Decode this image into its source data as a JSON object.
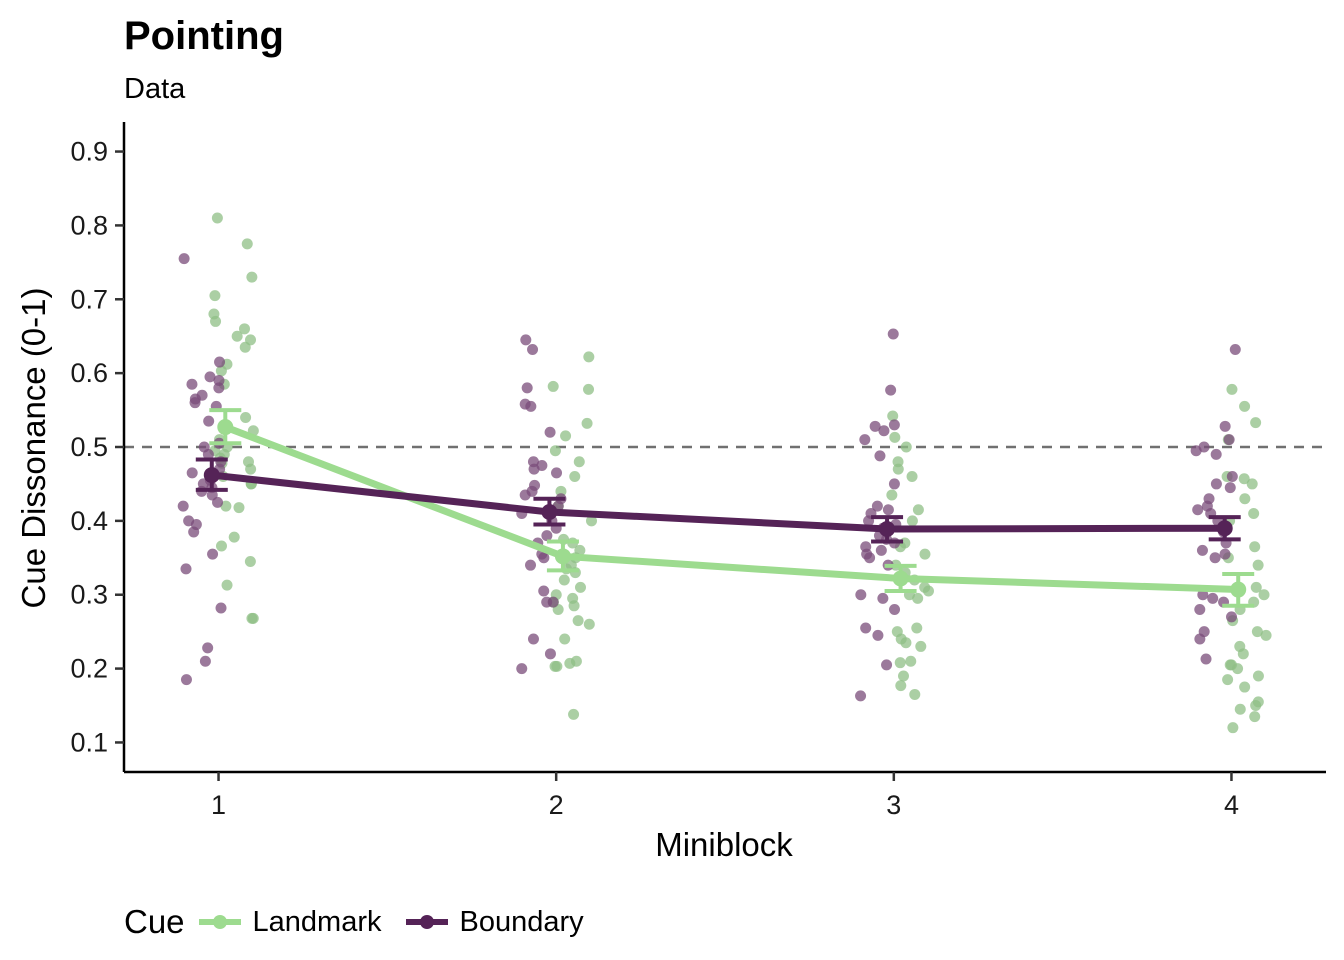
{
  "chart_data": {
    "type": "scatter",
    "title": "Pointing",
    "subtitle": "Data",
    "xlabel": "Miniblock",
    "ylabel": "Cue Dissonance (0-1)",
    "x": [
      1,
      2,
      3,
      4
    ],
    "x_ticks": [
      "1",
      "2",
      "3",
      "4"
    ],
    "xlim": [
      0.72,
      4.28
    ],
    "ylim": [
      0.06,
      0.94
    ],
    "y_ticks": [
      0.1,
      0.2,
      0.3,
      0.4,
      0.5,
      0.6,
      0.7,
      0.8,
      0.9
    ],
    "y_tick_labels": [
      "0.1",
      "0.2",
      "0.3",
      "0.4",
      "0.5",
      "0.6",
      "0.7",
      "0.8",
      "0.9"
    ],
    "reference_line": {
      "y": 0.5,
      "style": "dashed",
      "color": "#707070"
    },
    "grid": false,
    "legend": {
      "title": "Cue",
      "position": "bottom-left"
    },
    "series": [
      {
        "name": "Landmark",
        "color": "#9ddb8f",
        "point_color": "#8fbf86",
        "means": [
          0.527,
          0.352,
          0.322,
          0.307
        ],
        "se_low": [
          0.505,
          0.333,
          0.305,
          0.285
        ],
        "se_high": [
          0.55,
          0.372,
          0.339,
          0.328
        ],
        "observations": [
          [
            0.81,
            0.775,
            0.73,
            0.705,
            0.68,
            0.67,
            0.66,
            0.65,
            0.645,
            0.635,
            0.612,
            0.603,
            0.585,
            0.54,
            0.522,
            0.51,
            0.5,
            0.495,
            0.49,
            0.485,
            0.48,
            0.478,
            0.47,
            0.46,
            0.45,
            0.45,
            0.42,
            0.418,
            0.378,
            0.366,
            0.345,
            0.313,
            0.268,
            0.268
          ],
          [
            0.622,
            0.582,
            0.578,
            0.532,
            0.515,
            0.495,
            0.48,
            0.46,
            0.44,
            0.42,
            0.4,
            0.375,
            0.37,
            0.36,
            0.35,
            0.34,
            0.335,
            0.33,
            0.32,
            0.31,
            0.3,
            0.295,
            0.29,
            0.285,
            0.28,
            0.265,
            0.26,
            0.24,
            0.21,
            0.207,
            0.203,
            0.203,
            0.138
          ],
          [
            0.542,
            0.513,
            0.5,
            0.48,
            0.47,
            0.46,
            0.435,
            0.415,
            0.4,
            0.37,
            0.365,
            0.355,
            0.34,
            0.33,
            0.32,
            0.31,
            0.305,
            0.3,
            0.295,
            0.255,
            0.25,
            0.24,
            0.235,
            0.23,
            0.21,
            0.208,
            0.19,
            0.177,
            0.165
          ],
          [
            0.578,
            0.555,
            0.533,
            0.51,
            0.46,
            0.457,
            0.45,
            0.43,
            0.41,
            0.4,
            0.365,
            0.35,
            0.34,
            0.31,
            0.3,
            0.29,
            0.28,
            0.265,
            0.25,
            0.245,
            0.23,
            0.22,
            0.205,
            0.205,
            0.2,
            0.19,
            0.185,
            0.175,
            0.155,
            0.15,
            0.145,
            0.135,
            0.12
          ]
        ]
      },
      {
        "name": "Boundary",
        "color": "#552357",
        "point_color": "#7a4c79",
        "means": [
          0.462,
          0.412,
          0.389,
          0.39
        ],
        "se_low": [
          0.442,
          0.395,
          0.372,
          0.375
        ],
        "se_high": [
          0.483,
          0.43,
          0.405,
          0.405
        ],
        "observations": [
          [
            0.755,
            0.615,
            0.595,
            0.59,
            0.585,
            0.58,
            0.57,
            0.565,
            0.56,
            0.555,
            0.535,
            0.505,
            0.5,
            0.49,
            0.48,
            0.47,
            0.465,
            0.46,
            0.455,
            0.45,
            0.445,
            0.44,
            0.435,
            0.425,
            0.42,
            0.4,
            0.395,
            0.385,
            0.355,
            0.335,
            0.282,
            0.228,
            0.21,
            0.185
          ],
          [
            0.645,
            0.632,
            0.58,
            0.558,
            0.555,
            0.52,
            0.48,
            0.475,
            0.47,
            0.465,
            0.448,
            0.44,
            0.435,
            0.43,
            0.42,
            0.41,
            0.4,
            0.39,
            0.38,
            0.37,
            0.355,
            0.35,
            0.34,
            0.305,
            0.29,
            0.29,
            0.24,
            0.22,
            0.2
          ],
          [
            0.653,
            0.577,
            0.53,
            0.528,
            0.522,
            0.51,
            0.488,
            0.45,
            0.42,
            0.415,
            0.41,
            0.4,
            0.395,
            0.39,
            0.38,
            0.375,
            0.37,
            0.365,
            0.36,
            0.355,
            0.35,
            0.34,
            0.3,
            0.295,
            0.28,
            0.255,
            0.245,
            0.205,
            0.163
          ],
          [
            0.632,
            0.528,
            0.51,
            0.5,
            0.495,
            0.49,
            0.46,
            0.45,
            0.445,
            0.43,
            0.42,
            0.415,
            0.41,
            0.4,
            0.385,
            0.37,
            0.36,
            0.355,
            0.35,
            0.3,
            0.295,
            0.29,
            0.28,
            0.27,
            0.25,
            0.24,
            0.213
          ]
        ]
      }
    ]
  }
}
